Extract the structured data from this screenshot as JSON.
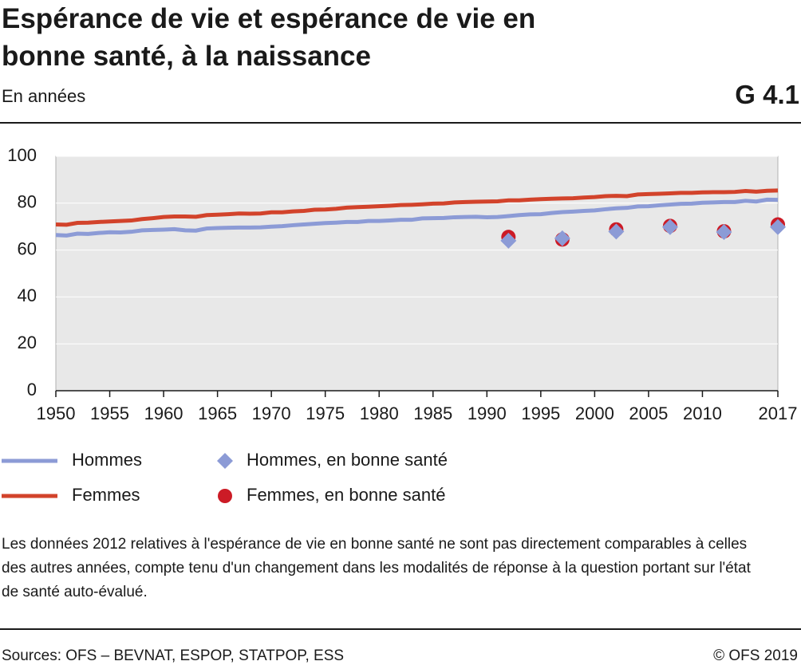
{
  "chart_data": {
    "type": "line",
    "title": "Espérance de vie et espérance de vie en bonne santé, à la naissance",
    "subtitle": "En années",
    "chart_id": "G 4.1",
    "note": "Les données 2012 relatives à l'espérance de vie en bonne santé ne sont pas directement comparables à celles des autres années, compte tenu d'un changement dans les modalités de réponse à la question portant sur l'état de santé auto-évalué.",
    "sources": "Sources: OFS – BEVNAT, ESPOP, STATPOP, ESS",
    "copyright": "© OFS 2019",
    "x": [
      1950,
      1951,
      1952,
      1953,
      1954,
      1955,
      1956,
      1957,
      1958,
      1959,
      1960,
      1961,
      1962,
      1963,
      1964,
      1965,
      1966,
      1967,
      1968,
      1969,
      1970,
      1971,
      1972,
      1973,
      1974,
      1975,
      1976,
      1977,
      1978,
      1979,
      1980,
      1981,
      1982,
      1983,
      1984,
      1985,
      1986,
      1987,
      1988,
      1989,
      1990,
      1991,
      1992,
      1993,
      1994,
      1995,
      1996,
      1997,
      1998,
      1999,
      2000,
      2001,
      2002,
      2003,
      2004,
      2005,
      2006,
      2007,
      2008,
      2009,
      2010,
      2011,
      2012,
      2013,
      2014,
      2015,
      2016,
      2017
    ],
    "series": [
      {
        "name": "Hommes",
        "color": "#8c9bd6",
        "values": [
          66.4,
          66.2,
          67.0,
          66.9,
          67.3,
          67.6,
          67.5,
          67.8,
          68.4,
          68.6,
          68.7,
          68.9,
          68.4,
          68.3,
          69.2,
          69.4,
          69.5,
          69.6,
          69.6,
          69.7,
          70.0,
          70.2,
          70.6,
          70.9,
          71.2,
          71.5,
          71.7,
          72.0,
          72.0,
          72.4,
          72.4,
          72.6,
          72.9,
          72.9,
          73.5,
          73.6,
          73.7,
          74.0,
          74.1,
          74.2,
          74.0,
          74.1,
          74.5,
          74.9,
          75.2,
          75.3,
          75.8,
          76.2,
          76.4,
          76.7,
          76.9,
          77.4,
          77.8,
          78.0,
          78.6,
          78.7,
          79.1,
          79.4,
          79.7,
          79.8,
          80.2,
          80.3,
          80.5,
          80.5,
          81.0,
          80.7,
          81.5,
          81.4
        ]
      },
      {
        "name": "Femmes",
        "color": "#d2432b",
        "values": [
          70.9,
          70.8,
          71.6,
          71.7,
          72.0,
          72.2,
          72.4,
          72.6,
          73.2,
          73.6,
          74.1,
          74.3,
          74.3,
          74.2,
          74.9,
          75.1,
          75.3,
          75.6,
          75.5,
          75.6,
          76.1,
          76.1,
          76.5,
          76.7,
          77.2,
          77.3,
          77.6,
          78.1,
          78.3,
          78.5,
          78.7,
          78.9,
          79.2,
          79.3,
          79.5,
          79.8,
          79.9,
          80.3,
          80.5,
          80.6,
          80.7,
          80.8,
          81.2,
          81.2,
          81.5,
          81.7,
          81.9,
          82.0,
          82.1,
          82.4,
          82.6,
          83.0,
          83.1,
          83.0,
          83.7,
          83.9,
          84.0,
          84.2,
          84.4,
          84.4,
          84.6,
          84.7,
          84.7,
          84.8,
          85.2,
          84.9,
          85.3,
          85.4
        ]
      },
      {
        "name": "Femmes, en bonne santé",
        "color": "#cc1b26",
        "marker": "circle",
        "x": [
          1992,
          1997,
          2002,
          2007,
          2012,
          2017
        ],
        "values": [
          65.6,
          64.5,
          68.8,
          70.3,
          68.0,
          70.9
        ]
      },
      {
        "name": "Hommes, en bonne santé",
        "color": "#8c9bd6",
        "marker": "diamond",
        "x": [
          1992,
          1997,
          2002,
          2007,
          2012,
          2017
        ],
        "values": [
          64.0,
          65.0,
          67.9,
          69.8,
          67.7,
          69.8
        ]
      }
    ],
    "xlim": [
      1950,
      2017
    ],
    "xticks": [
      1950,
      1955,
      1960,
      1965,
      1970,
      1975,
      1980,
      1985,
      1990,
      1995,
      2000,
      2005,
      2010,
      2017
    ],
    "ylim": [
      0,
      100
    ],
    "yticks": [
      0,
      20,
      40,
      60,
      80,
      100
    ],
    "grid": true
  }
}
